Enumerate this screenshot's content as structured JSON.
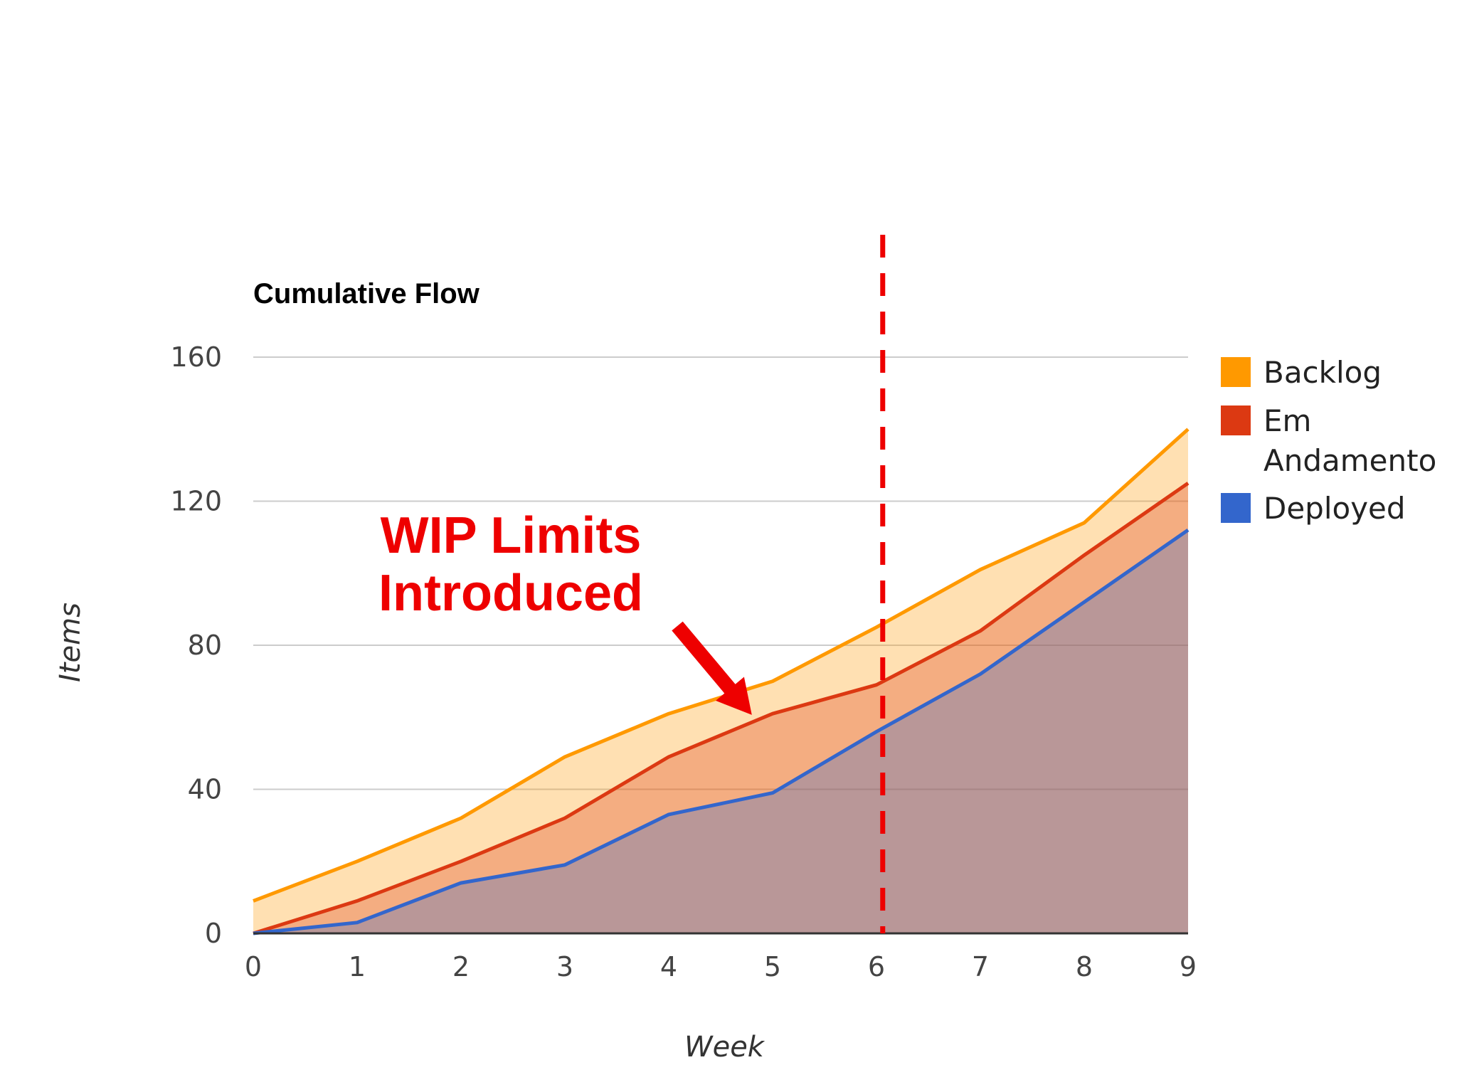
{
  "chart_data": {
    "type": "area",
    "stacked": false,
    "title": "Cumulative Flow",
    "xlabel": "Week",
    "ylabel": "Items",
    "x": [
      0,
      1,
      2,
      3,
      4,
      5,
      6,
      7,
      8,
      9
    ],
    "xlim": [
      0,
      9
    ],
    "ylim": [
      0,
      160
    ],
    "y_ticks": [
      0,
      40,
      80,
      120,
      160
    ],
    "grid": true,
    "legend_position": "right",
    "series": [
      {
        "name": "Backlog",
        "color": "#ff9900",
        "values": [
          9,
          20,
          32,
          49,
          61,
          70,
          85,
          101,
          114,
          140
        ]
      },
      {
        "name": "Em Andamento",
        "color": "#dc3912",
        "values": [
          0,
          9,
          20,
          32,
          49,
          61,
          69,
          84,
          105,
          125
        ]
      },
      {
        "name": "Deployed",
        "color": "#3366cc",
        "values": [
          0,
          3,
          14,
          19,
          33,
          39,
          56,
          72,
          92,
          112
        ]
      }
    ],
    "annotation": {
      "lines": [
        "WIP Limits",
        "Introduced"
      ],
      "color": "#ee0000",
      "marker_x": 6.06,
      "arrow_target": {
        "x": 4.8,
        "y": 65
      }
    }
  }
}
